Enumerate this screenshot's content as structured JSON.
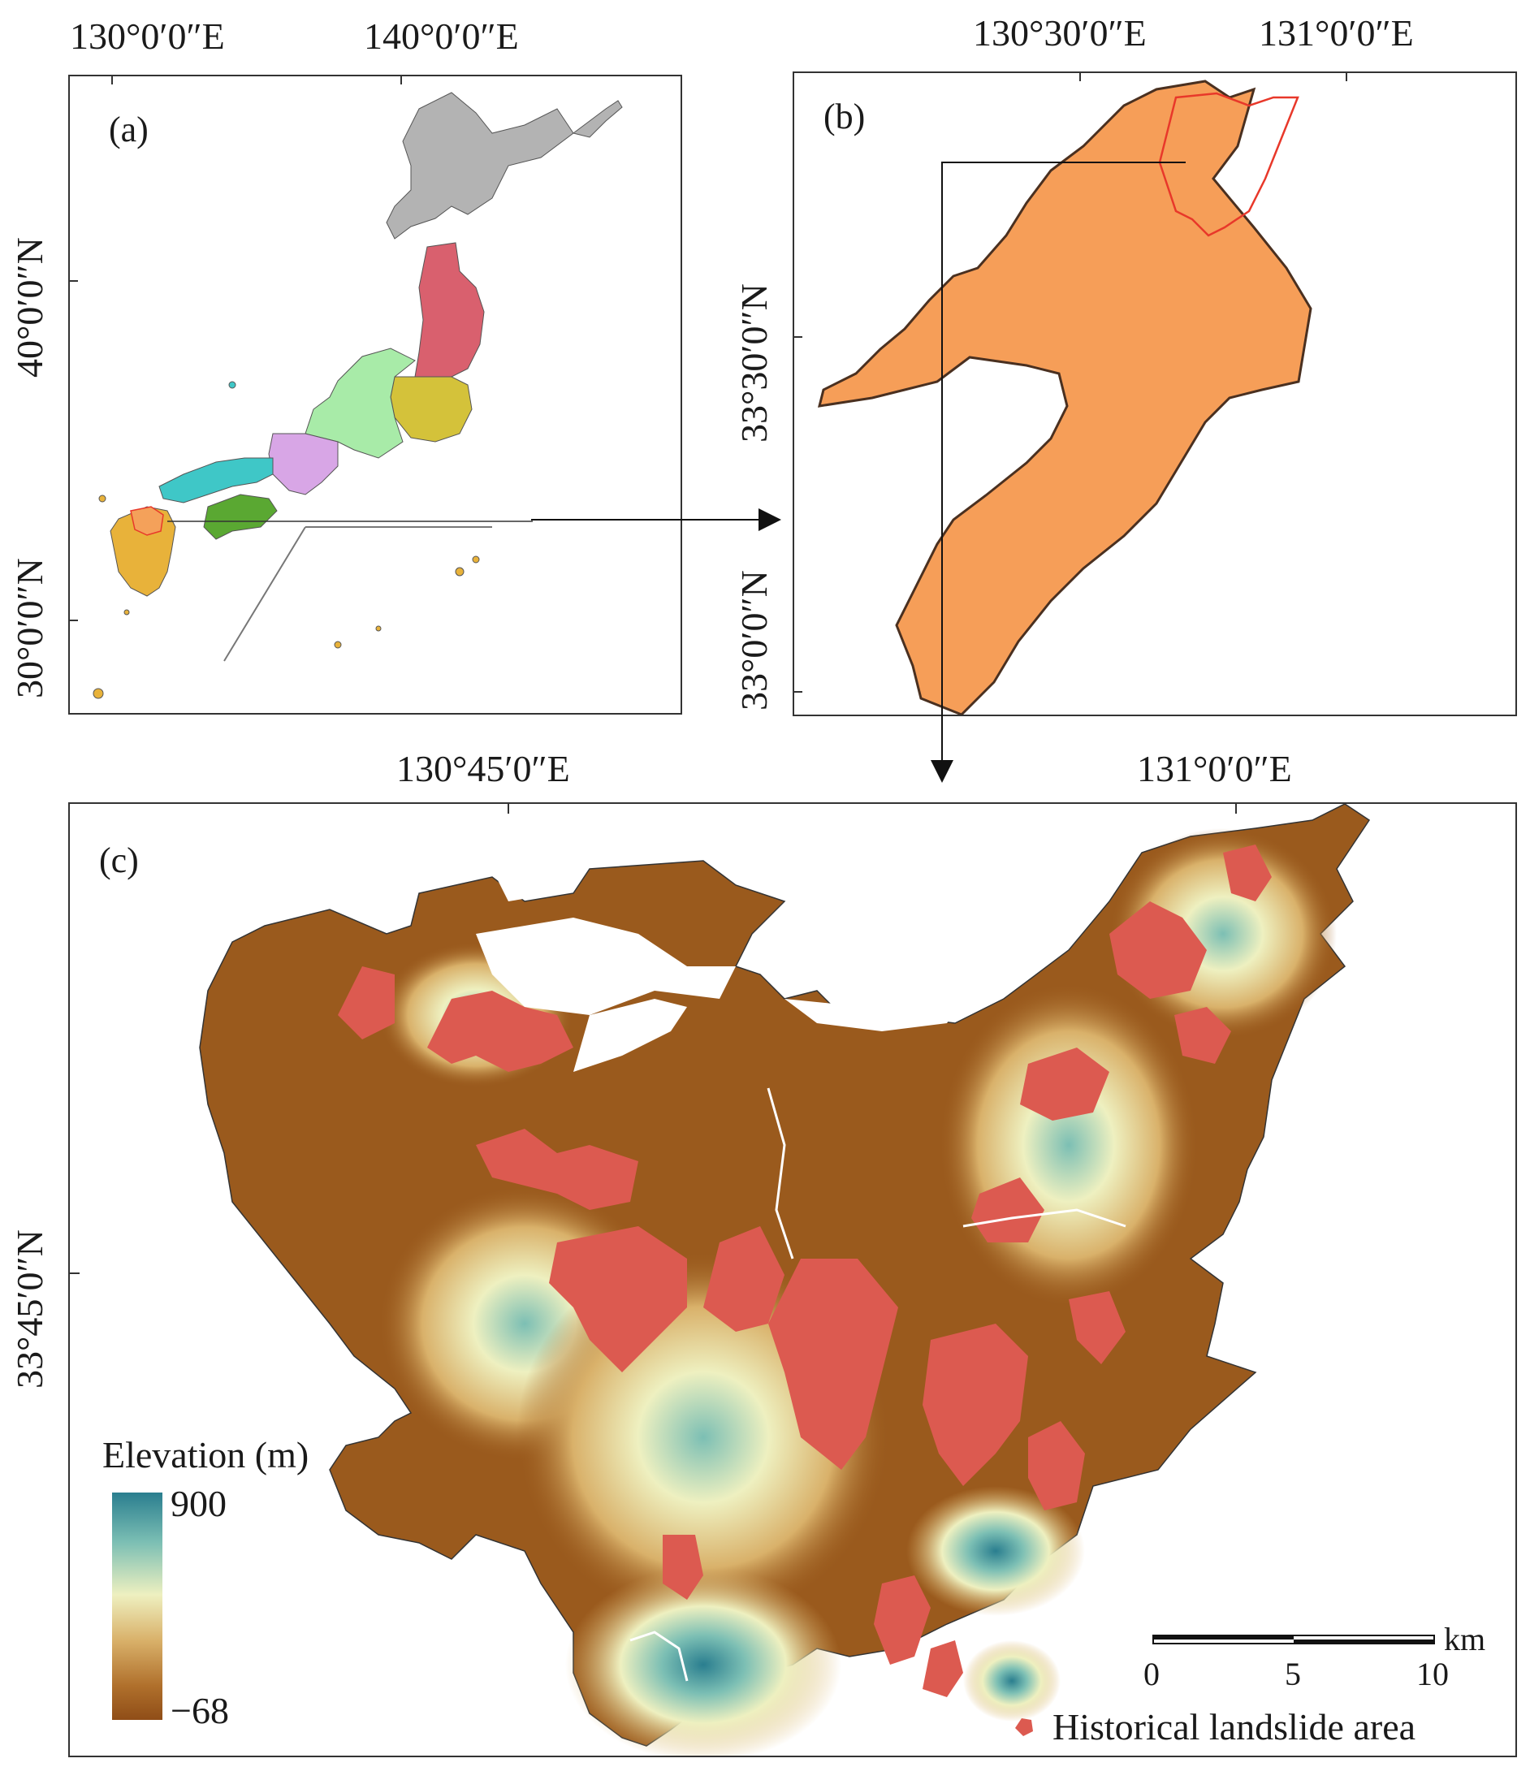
{
  "panels": {
    "a": {
      "label": "(a)",
      "x_ticks": [
        "130°0′0″E",
        "140°0′0″E"
      ],
      "y_ticks": [
        "40°0′0″N",
        "30°0′0″N"
      ],
      "region_colors": {
        "hokkaido": "#b3b3b3",
        "tohoku": "#d9606e",
        "kanto": "#d4c23a",
        "chubu": "#a8eba8",
        "kinki": "#d8a6e6",
        "chugoku": "#3fc7c7",
        "shikoku": "#5aa832",
        "kyushu": "#e8b23a",
        "fukuoka": "#f4a15a"
      }
    },
    "b": {
      "label": "(b)",
      "x_ticks": [
        "130°30′0″E",
        "131°0′0″E"
      ],
      "y_ticks": [
        "33°30′0″N",
        "33°0′0″N"
      ],
      "prefecture_fill": "#f69e58",
      "study_area_outline": "#e8382a"
    },
    "c": {
      "label": "(c)",
      "x_ticks": [
        "130°45′0″E",
        "131°0′0″E"
      ],
      "y_ticks": [
        "33°45′0″N"
      ],
      "legend": {
        "title": "Elevation (m)",
        "max": "900",
        "min": "−68",
        "colors": [
          "#2a7e8f",
          "#7cbfb4",
          "#eef0c0",
          "#d9b16a",
          "#b0702c",
          "#8f4d17"
        ]
      },
      "scalebar": {
        "labels": [
          "0",
          "5",
          "10"
        ],
        "unit": "km"
      },
      "landslide_legend": {
        "label": "Historical landslide area",
        "color": "#dc5a50"
      }
    }
  }
}
